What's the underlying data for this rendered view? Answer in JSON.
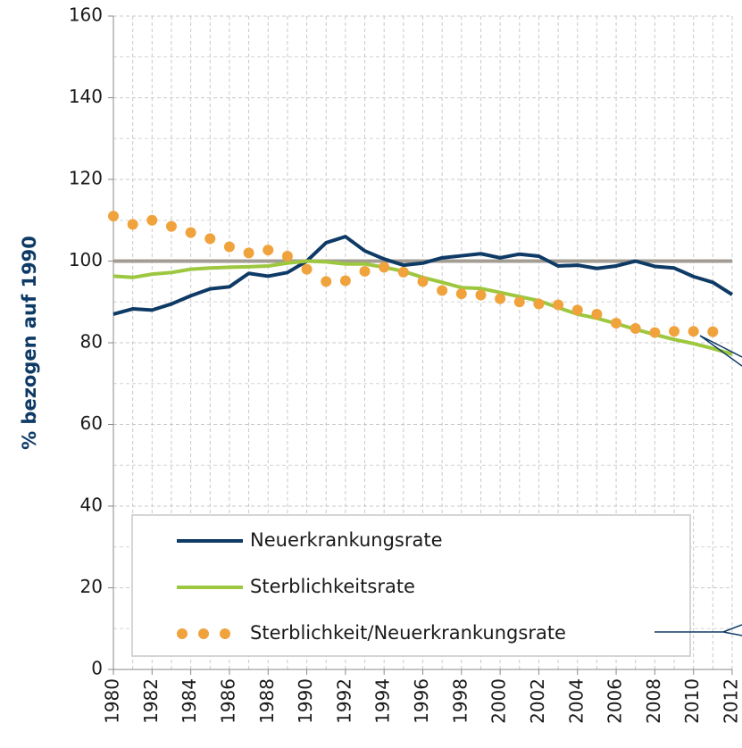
{
  "chart_data": {
    "type": "line",
    "y_label": "% bezogen auf 1990",
    "x": [
      1980,
      1981,
      1982,
      1983,
      1984,
      1985,
      1986,
      1987,
      1988,
      1989,
      1990,
      1991,
      1992,
      1993,
      1994,
      1995,
      1996,
      1997,
      1998,
      1999,
      2000,
      2001,
      2002,
      2003,
      2004,
      2005,
      2006,
      2007,
      2008,
      2009,
      2010,
      2011,
      2012
    ],
    "xlim": [
      1980,
      2012
    ],
    "xticks": [
      1980,
      1982,
      1984,
      1986,
      1988,
      1990,
      1992,
      1994,
      1996,
      1998,
      2000,
      2002,
      2004,
      2006,
      2008,
      2010,
      2012
    ],
    "ylim": [
      0,
      160
    ],
    "yticks": [
      0,
      20,
      40,
      60,
      80,
      100,
      120,
      140,
      160
    ],
    "grid": true,
    "reference_line": {
      "value": 100,
      "color": "#a39d93"
    },
    "series": [
      {
        "name": "Neuerkrankungsrate",
        "color": "#0e3a66",
        "style": "line",
        "values": [
          87,
          88.3,
          88,
          89.5,
          91.5,
          93.2,
          93.7,
          97,
          96.3,
          97.2,
          100,
          104.5,
          106,
          102.5,
          100.5,
          99,
          99.5,
          100.8,
          101.3,
          101.8,
          100.8,
          101.7,
          101.2,
          98.8,
          99,
          98.2,
          98.8,
          100,
          98.7,
          98.3,
          96.2,
          94.8,
          91.8
        ]
      },
      {
        "name": "Sterblichkeitsrate",
        "color": "#9dc73e",
        "style": "line",
        "values": [
          96.3,
          96,
          96.8,
          97.2,
          98,
          98.3,
          98.5,
          98.6,
          98.8,
          99.5,
          100,
          99.8,
          99.3,
          99.3,
          98.5,
          97.5,
          96,
          94.8,
          93.5,
          93.3,
          92.3,
          91.3,
          90.3,
          88.6,
          87,
          86,
          84.7,
          83.3,
          82,
          80.8,
          79.8,
          78.6,
          77.2
        ]
      },
      {
        "name": "Sterblichkeit/Neuerkrankungsrate",
        "color": "#f0a33c",
        "style": "dots",
        "values": [
          111,
          109,
          110,
          108.5,
          107,
          105.5,
          103.5,
          102,
          102.7,
          101.2,
          98,
          95,
          95.2,
          97.5,
          98.5,
          97.3,
          95,
          92.8,
          92,
          91.7,
          90.8,
          90,
          89.5,
          89.3,
          88,
          87,
          84.8,
          83.5,
          82.5,
          82.8,
          82.8,
          82.7,
          null
        ]
      }
    ]
  }
}
